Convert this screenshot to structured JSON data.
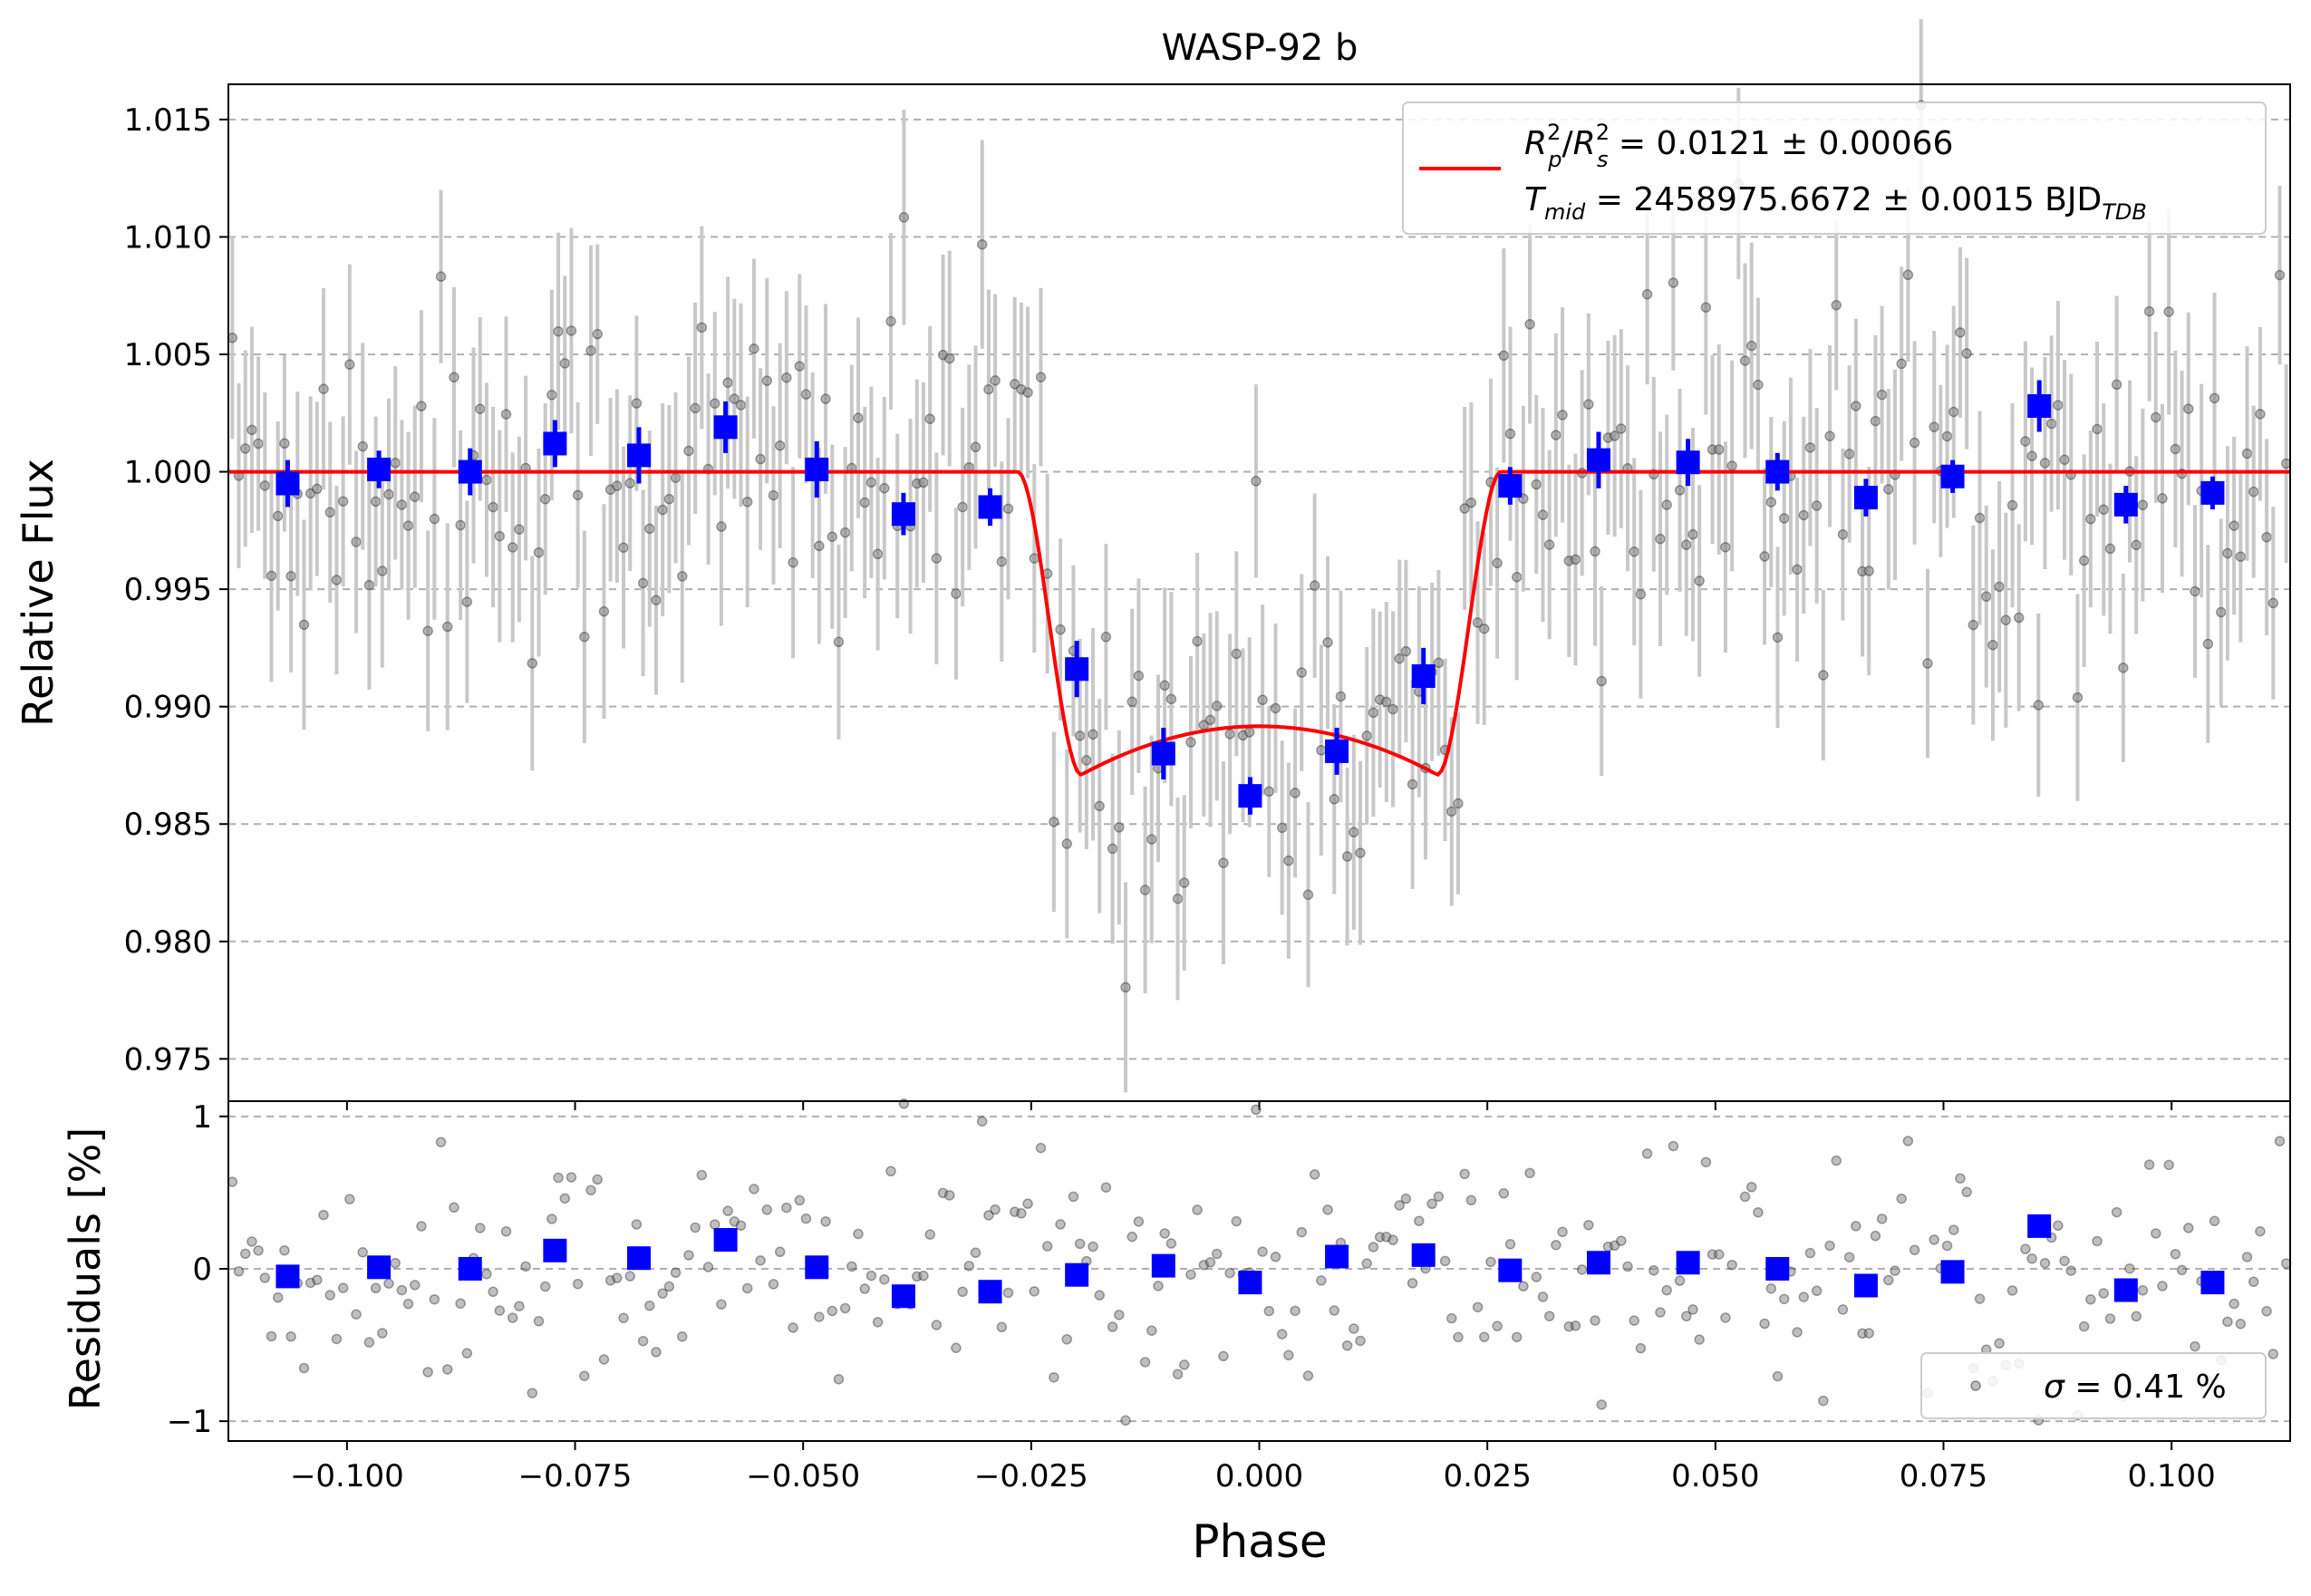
{
  "chart_data": [
    {
      "type": "scatter",
      "title": "WASP-92 b",
      "xlabel": "",
      "ylabel": "Relative Flux",
      "xlim": [
        -0.113,
        0.113
      ],
      "ylim": [
        0.9732,
        1.0165
      ],
      "grid": "horizontal-dashed",
      "xticks": [
        "",
        "",
        "",
        "",
        "",
        "",
        "",
        "",
        "",
        ""
      ],
      "yticks": [
        {
          "value": 0.975,
          "label": "0.975"
        },
        {
          "value": 0.98,
          "label": "0.980"
        },
        {
          "value": 0.985,
          "label": "0.985"
        },
        {
          "value": 0.99,
          "label": "0.990"
        },
        {
          "value": 0.995,
          "label": "0.995"
        },
        {
          "value": 1.0,
          "label": "1.000"
        },
        {
          "value": 1.005,
          "label": "1.005"
        },
        {
          "value": 1.01,
          "label": "1.010"
        },
        {
          "value": 1.015,
          "label": "1.015"
        }
      ],
      "legend": {
        "placement": "top-right",
        "line1": {
          "lhs_a": "R",
          "lhs_a_sup": "2",
          "lhs_a_sub": "p",
          "slash": "/",
          "lhs_b": "R",
          "lhs_b_sup": "2",
          "lhs_b_sub": "s",
          "rhs": " = 0.0121 ± 0.00066"
        },
        "line2": {
          "lhs": "T",
          "lhs_sub": "mid",
          "rhs": " = 2458975.6672 ± 0.0015 BJD",
          "unit_sub": "TDB"
        }
      },
      "model": {
        "name": "transit model",
        "color": "#ff0000",
        "depth": 0.0129,
        "t1": -0.0265,
        "t2": -0.0195,
        "t3": 0.0195,
        "t4": 0.0265
      },
      "raw_points": {
        "color": "#808080",
        "errorbar_color": "#c8c8c8",
        "x_start": -0.114,
        "x_end": 0.114,
        "count": 320,
        "errorbar_halfwidth": 0.004
      },
      "binned": {
        "color": "#0000ff",
        "points": [
          {
            "x": -0.1065,
            "y": 0.9995,
            "err": 0.001
          },
          {
            "x": -0.0965,
            "y": 1.0001,
            "err": 0.0008
          },
          {
            "x": -0.0865,
            "y": 1.0,
            "err": 0.001
          },
          {
            "x": -0.0772,
            "y": 1.0012,
            "err": 0.001
          },
          {
            "x": -0.068,
            "y": 1.0007,
            "err": 0.0012
          },
          {
            "x": -0.0585,
            "y": 1.0019,
            "err": 0.0011
          },
          {
            "x": -0.0485,
            "y": 1.0001,
            "err": 0.0012
          },
          {
            "x": -0.039,
            "y": 0.9982,
            "err": 0.0009
          },
          {
            "x": -0.0295,
            "y": 0.9985,
            "err": 0.0008
          },
          {
            "x": -0.02,
            "y": 0.9916,
            "err": 0.0012
          },
          {
            "x": -0.0105,
            "y": 0.988,
            "err": 0.0011
          },
          {
            "x": -0.001,
            "y": 0.9862,
            "err": 0.0008
          },
          {
            "x": 0.0085,
            "y": 0.9881,
            "err": 0.001
          },
          {
            "x": 0.018,
            "y": 0.9913,
            "err": 0.0012
          },
          {
            "x": 0.0275,
            "y": 0.9994,
            "err": 0.0008
          },
          {
            "x": 0.0372,
            "y": 1.0005,
            "err": 0.0012
          },
          {
            "x": 0.047,
            "y": 1.0004,
            "err": 0.001
          },
          {
            "x": 0.0568,
            "y": 1.0,
            "err": 0.0008
          },
          {
            "x": 0.0665,
            "y": 0.9989,
            "err": 0.0008
          },
          {
            "x": 0.076,
            "y": 0.9998,
            "err": 0.0007
          },
          {
            "x": 0.0855,
            "y": 1.0028,
            "err": 0.0011
          },
          {
            "x": 0.095,
            "y": 0.9986,
            "err": 0.0008
          },
          {
            "x": 0.1045,
            "y": 0.9991,
            "err": 0.0007
          }
        ]
      }
    },
    {
      "type": "scatter",
      "title": "",
      "xlabel": "Phase",
      "ylabel": "Residuals [%]",
      "xlim": [
        -0.113,
        0.113
      ],
      "ylim": [
        -1.13,
        1.1
      ],
      "grid": "horizontal-dashed",
      "xticks": [
        {
          "value": -0.1,
          "label": "−0.100"
        },
        {
          "value": -0.075,
          "label": "−0.075"
        },
        {
          "value": -0.05,
          "label": "−0.050"
        },
        {
          "value": -0.025,
          "label": "−0.025"
        },
        {
          "value": 0.0,
          "label": "0.000"
        },
        {
          "value": 0.025,
          "label": "0.025"
        },
        {
          "value": 0.05,
          "label": "0.050"
        },
        {
          "value": 0.075,
          "label": "0.075"
        },
        {
          "value": 0.1,
          "label": "0.100"
        }
      ],
      "yticks": [
        {
          "value": -1,
          "label": "−1"
        },
        {
          "value": 0,
          "label": "0"
        },
        {
          "value": 1,
          "label": "1"
        }
      ],
      "legend": {
        "placement": "bottom-right",
        "sigma_symbol": "σ",
        "sigma_text": " = 0.41 %"
      },
      "raw_points": {
        "color": "#808080",
        "x_start": -0.114,
        "x_end": 0.114,
        "count": 320
      },
      "binned": {
        "color": "#0000ff",
        "points": [
          {
            "x": -0.1065,
            "y": -0.05
          },
          {
            "x": -0.0965,
            "y": 0.01
          },
          {
            "x": -0.0865,
            "y": 0.0
          },
          {
            "x": -0.0772,
            "y": 0.12
          },
          {
            "x": -0.068,
            "y": 0.07
          },
          {
            "x": -0.0585,
            "y": 0.19
          },
          {
            "x": -0.0485,
            "y": 0.01
          },
          {
            "x": -0.039,
            "y": -0.18
          },
          {
            "x": -0.0295,
            "y": -0.15
          },
          {
            "x": -0.02,
            "y": -0.04
          },
          {
            "x": -0.0105,
            "y": 0.02
          },
          {
            "x": -0.001,
            "y": -0.09
          },
          {
            "x": 0.0085,
            "y": 0.08
          },
          {
            "x": 0.018,
            "y": 0.09
          },
          {
            "x": 0.0275,
            "y": -0.01
          },
          {
            "x": 0.0372,
            "y": 0.04
          },
          {
            "x": 0.047,
            "y": 0.04
          },
          {
            "x": 0.0568,
            "y": 0.0
          },
          {
            "x": 0.0665,
            "y": -0.11
          },
          {
            "x": 0.076,
            "y": -0.02
          },
          {
            "x": 0.0855,
            "y": 0.28
          },
          {
            "x": 0.095,
            "y": -0.14
          },
          {
            "x": 0.1045,
            "y": -0.09
          }
        ]
      }
    }
  ]
}
